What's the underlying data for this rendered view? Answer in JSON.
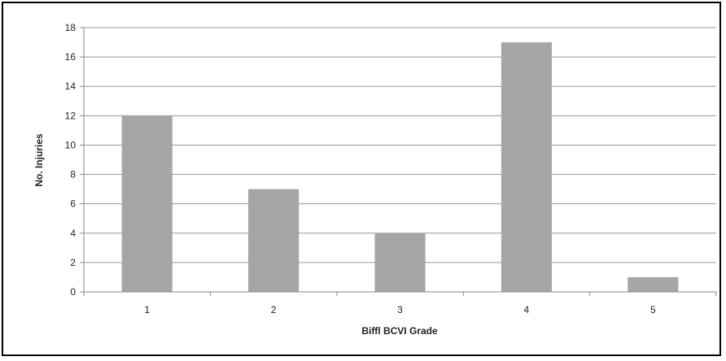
{
  "chart_data": {
    "type": "bar",
    "title": "",
    "xlabel": "Biffl BCVI Grade",
    "ylabel": "No. Injuries",
    "categories": [
      "1",
      "2",
      "3",
      "4",
      "5"
    ],
    "values": [
      12,
      7,
      4,
      17,
      1
    ],
    "ylim": [
      0,
      18
    ],
    "yticks": [
      0,
      2,
      4,
      6,
      8,
      10,
      12,
      14,
      16,
      18
    ],
    "grid": true,
    "legend": "none",
    "bar_color": "#a6a6a6",
    "grid_color": "#9a9a9a"
  }
}
